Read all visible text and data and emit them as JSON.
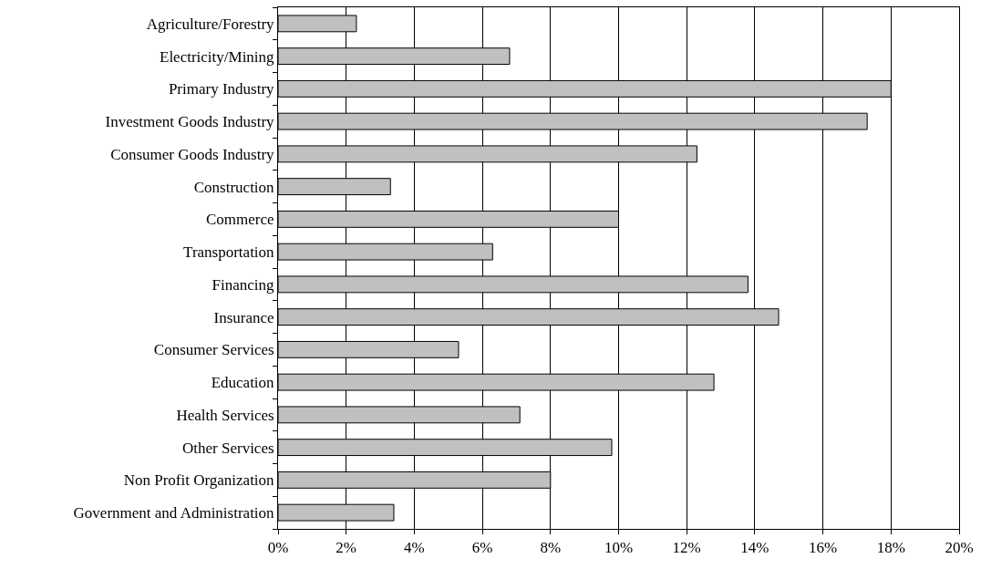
{
  "chart_data": {
    "type": "bar",
    "orientation": "horizontal",
    "categories": [
      "Agriculture/Forestry",
      "Electricity/Mining",
      "Primary Industry",
      "Investment Goods Industry",
      "Consumer Goods Industry",
      "Construction",
      "Commerce",
      "Transportation",
      "Financing",
      "Insurance",
      "Consumer Services",
      "Education",
      "Health Services",
      "Other Services",
      "Non Profit Organization",
      "Government and Administration"
    ],
    "values": [
      2.3,
      6.8,
      18.0,
      17.3,
      12.3,
      3.3,
      10.0,
      6.3,
      13.8,
      14.7,
      5.3,
      12.8,
      7.1,
      9.8,
      8.0,
      3.4
    ],
    "color": "#c0c0c0",
    "xlim": [
      0,
      20
    ],
    "xticks": [
      {
        "value": 0,
        "label": "0%"
      },
      {
        "value": 2,
        "label": "2%"
      },
      {
        "value": 4,
        "label": "4%"
      },
      {
        "value": 6,
        "label": "6%"
      },
      {
        "value": 8,
        "label": "8%"
      },
      {
        "value": 10,
        "label": "10%"
      },
      {
        "value": 12,
        "label": "12%"
      },
      {
        "value": 14,
        "label": "14%"
      },
      {
        "value": 16,
        "label": "16%"
      },
      {
        "value": 18,
        "label": "18%"
      },
      {
        "value": 20,
        "label": "20%"
      }
    ],
    "grid": "x",
    "legend": false
  }
}
